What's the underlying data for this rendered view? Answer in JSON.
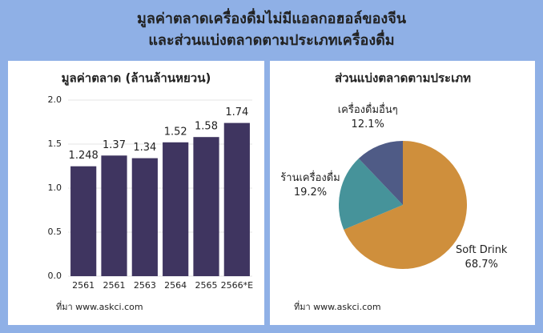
{
  "title": [
    "มูลค่าตลาดเครื่องดื่มไม่มีแอลกอฮอล์ของจีน",
    "และส่วนแบ่งตลาดตามประเภทเครื่องดื่ม"
  ],
  "chart_data": [
    {
      "type": "bar",
      "title": "มูลค่าตลาด (ล้านล้านหยวน)",
      "categories": [
        "2561",
        "2561",
        "2563",
        "2564",
        "2565",
        "2566*E"
      ],
      "values": [
        1.248,
        1.37,
        1.34,
        1.52,
        1.58,
        1.74
      ],
      "color": "#3f3560",
      "ylim": [
        0,
        2.0
      ],
      "yticks": [
        {
          "value": 0,
          "label": "0.0"
        },
        {
          "value": 0.5,
          "label": "0.5"
        },
        {
          "value": 1,
          "label": "1.0"
        },
        {
          "value": 1.5,
          "label": "1.5"
        },
        {
          "value": 2,
          "label": "2.0"
        }
      ],
      "grid": true,
      "source": "ที่มา www.askci.com"
    },
    {
      "type": "pie",
      "title": "ส่วนแบ่งตลาดตามประเภท",
      "categories": [
        "Soft Drink",
        "ร้านเครื่องดื่ม",
        "เครื่องดื่มอื่นๆ"
      ],
      "values": [
        68.7,
        19.2,
        12.1
      ],
      "value_labels": [
        "68.7%",
        "19.2%",
        "12.1%"
      ],
      "colors": [
        "#cf8f3c",
        "#46939a",
        "#4f5b86"
      ],
      "source": "ที่มา www.askci.com"
    }
  ]
}
